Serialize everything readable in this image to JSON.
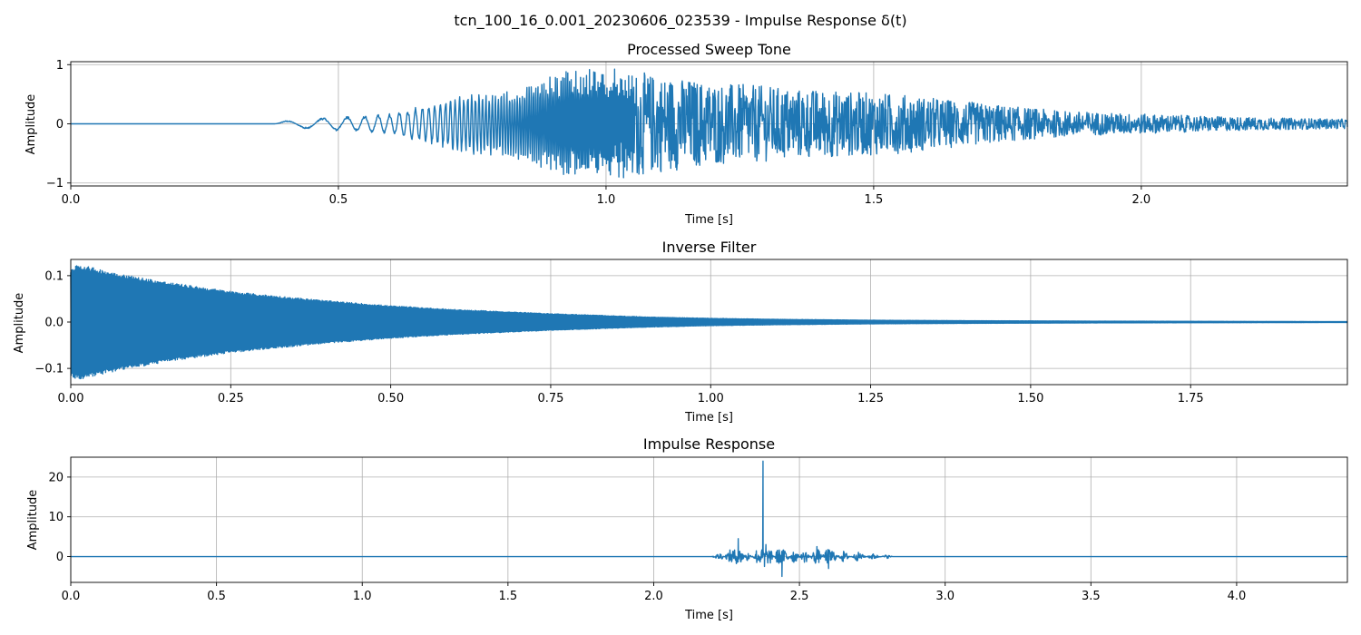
{
  "figure": {
    "suptitle": "tcn_100_16_0.001_20230606_023539 - Impulse Response δ(t)"
  },
  "style": {
    "line_color": "#1f77b4",
    "grid_color": "#b0b0b0",
    "axes_color": "#000000"
  },
  "chart_data": [
    {
      "type": "line",
      "title": "Processed Sweep Tone",
      "xlabel": "Time [s]",
      "ylabel": "Amplitude",
      "xlim": [
        0.0,
        2.385
      ],
      "ylim": [
        -1.05,
        1.05
      ],
      "xticks": [
        0.0,
        0.5,
        1.0,
        1.5,
        2.0
      ],
      "xtick_labels": [
        "0.0",
        "0.5",
        "1.0",
        "1.5",
        "2.0"
      ],
      "yticks": [
        1,
        0,
        -1
      ],
      "ytick_labels": [
        "1",
        "0",
        "−1"
      ],
      "grid": true,
      "series": [
        {
          "x": [
            0.0,
            0.38,
            0.4,
            0.43,
            0.46,
            0.5,
            0.55,
            0.6,
            0.65,
            0.7,
            0.75,
            0.8,
            0.85,
            0.9,
            0.95,
            0.99,
            1.03,
            1.08,
            1.12,
            1.2,
            1.28,
            1.35,
            1.45,
            1.55,
            1.65,
            1.75,
            1.85,
            1.95,
            2.05,
            2.15,
            2.25,
            2.385
          ],
          "y": [
            0.0,
            0.0,
            0.05,
            0.08,
            0.1,
            0.12,
            0.14,
            0.18,
            0.3,
            0.45,
            0.55,
            0.55,
            0.65,
            0.85,
            0.95,
            0.97,
            0.95,
            0.85,
            0.8,
            0.7,
            0.65,
            0.6,
            0.55,
            0.5,
            0.4,
            0.3,
            0.22,
            0.18,
            0.15,
            0.12,
            0.1,
            0.08
          ]
        }
      ]
    },
    {
      "type": "line",
      "title": "Inverse Filter",
      "xlabel": "Time [s]",
      "ylabel": "Amplitude",
      "xlim": [
        0.0,
        1.995
      ],
      "ylim": [
        -0.135,
        0.135
      ],
      "xticks": [
        0.0,
        0.25,
        0.5,
        0.75,
        1.0,
        1.25,
        1.5,
        1.75
      ],
      "xtick_labels": [
        "0.00",
        "0.25",
        "0.50",
        "0.75",
        "1.00",
        "1.25",
        "1.50",
        "1.75"
      ],
      "yticks": [
        0.1,
        0.0,
        -0.1
      ],
      "ytick_labels": [
        "0.1",
        "0.0",
        "−0.1"
      ],
      "grid": true,
      "series": [
        {
          "x": [
            0.0,
            0.01,
            0.05,
            0.1,
            0.15,
            0.2,
            0.25,
            0.3,
            0.4,
            0.5,
            0.6,
            0.75,
            0.9,
            1.0,
            1.1,
            1.25,
            1.4,
            1.6,
            1.8,
            1.995
          ],
          "y": [
            0.115,
            0.125,
            0.112,
            0.098,
            0.086,
            0.076,
            0.066,
            0.059,
            0.046,
            0.035,
            0.027,
            0.018,
            0.011,
            0.008,
            0.006,
            0.004,
            0.003,
            0.002,
            0.0015,
            0.001
          ]
        }
      ]
    },
    {
      "type": "line",
      "title": "Impulse Response",
      "xlabel": "Time [s]",
      "ylabel": "Amplitude",
      "xlim": [
        0.0,
        4.38
      ],
      "ylim": [
        -6.5,
        25.0
      ],
      "xticks": [
        0.0,
        0.5,
        1.0,
        1.5,
        2.0,
        2.5,
        3.0,
        3.5,
        4.0
      ],
      "xtick_labels": [
        "0.0",
        "0.5",
        "1.0",
        "1.5",
        "2.0",
        "2.5",
        "3.0",
        "3.5",
        "4.0"
      ],
      "yticks": [
        20,
        10,
        0
      ],
      "ytick_labels": [
        "20",
        "10",
        "0"
      ],
      "grid": true,
      "series": [
        {
          "x": [
            0.0,
            2.2,
            2.23,
            2.26,
            2.29,
            2.32,
            2.35,
            2.375,
            2.38,
            2.385,
            2.4,
            2.44,
            2.48,
            2.52,
            2.56,
            2.6,
            2.65,
            2.7,
            2.75,
            2.8,
            2.82,
            4.38
          ],
          "y": [
            0.0,
            0.0,
            -1.0,
            1.5,
            4.5,
            -1.5,
            1.2,
            24.0,
            -2.5,
            3.0,
            2.0,
            -5.0,
            2.0,
            -1.8,
            2.5,
            -3.0,
            1.5,
            -1.2,
            0.8,
            -0.5,
            0.0,
            0.0
          ]
        }
      ]
    }
  ]
}
